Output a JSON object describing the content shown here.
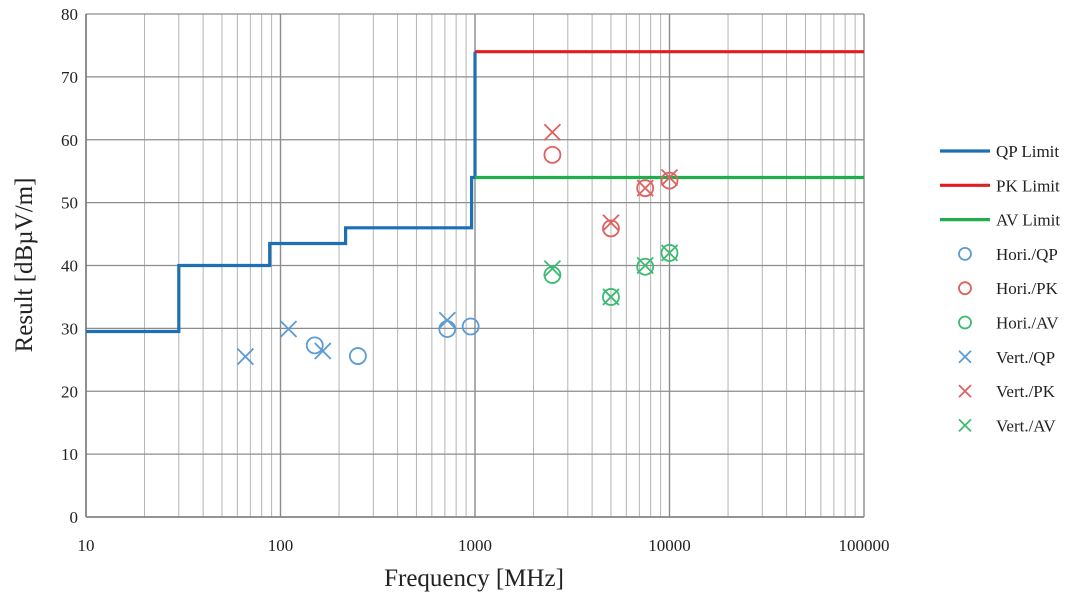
{
  "chart_data": {
    "type": "scatter",
    "xscale": "log",
    "xlim": [
      10,
      100000
    ],
    "ylim": [
      0,
      80
    ],
    "xlabel": "Frequency [MHz]",
    "ylabel": "Result [dBµV/m]",
    "grid": true,
    "legend_position": "right",
    "x_ticks": [
      10,
      100,
      1000,
      10000,
      100000
    ],
    "x_tick_labels": [
      "10",
      "100",
      "1000",
      "10000",
      "100000"
    ],
    "y_ticks": [
      0,
      10,
      20,
      30,
      40,
      50,
      60,
      70,
      80
    ],
    "y_tick_labels": [
      "0",
      "10",
      "20",
      "30",
      "40",
      "50",
      "60",
      "70",
      "80"
    ],
    "series": [
      {
        "name": "QP Limit",
        "kind": "line",
        "color": "#1f6fb5",
        "x": [
          10,
          30,
          30,
          88,
          88,
          216,
          216,
          960,
          960,
          1000,
          1000
        ],
        "y": [
          29.5,
          29.5,
          40,
          40,
          43.5,
          43.5,
          46,
          46,
          54,
          54,
          74
        ]
      },
      {
        "name": "PK Limit",
        "kind": "line",
        "color": "#e02020",
        "x": [
          1000,
          100000
        ],
        "y": [
          74,
          74
        ]
      },
      {
        "name": "AV Limit",
        "kind": "line",
        "color": "#1fae4b",
        "x": [
          1000,
          100000
        ],
        "y": [
          54,
          54
        ]
      },
      {
        "name": "Hori./QP",
        "kind": "marker",
        "marker": "circle",
        "color": "#5b9bd5",
        "x": [
          150,
          250,
          720,
          950
        ],
        "y": [
          27.3,
          25.6,
          29.9,
          30.3
        ]
      },
      {
        "name": "Hori./PK",
        "kind": "marker",
        "marker": "circle",
        "color": "#e06060",
        "x": [
          2500,
          5000,
          7500,
          10000
        ],
        "y": [
          57.6,
          45.9,
          52.3,
          53.5
        ]
      },
      {
        "name": "Hori./AV",
        "kind": "marker",
        "marker": "circle",
        "color": "#3dbb73",
        "x": [
          2500,
          5000,
          7500,
          10000
        ],
        "y": [
          38.5,
          35.0,
          39.8,
          42.0
        ]
      },
      {
        "name": "Vert./QP",
        "kind": "marker",
        "marker": "x",
        "color": "#5b9bd5",
        "x": [
          66,
          110,
          165,
          720
        ],
        "y": [
          25.5,
          29.9,
          26.4,
          31.3
        ]
      },
      {
        "name": "Vert./PK",
        "kind": "marker",
        "marker": "x",
        "color": "#e06060",
        "x": [
          2500,
          5000,
          7500,
          10000
        ],
        "y": [
          61.2,
          46.8,
          52.3,
          54.0
        ]
      },
      {
        "name": "Vert./AV",
        "kind": "marker",
        "marker": "x",
        "color": "#3dbb73",
        "x": [
          2500,
          5000,
          7500,
          10000
        ],
        "y": [
          39.5,
          35.0,
          40.0,
          42.0
        ]
      }
    ]
  }
}
